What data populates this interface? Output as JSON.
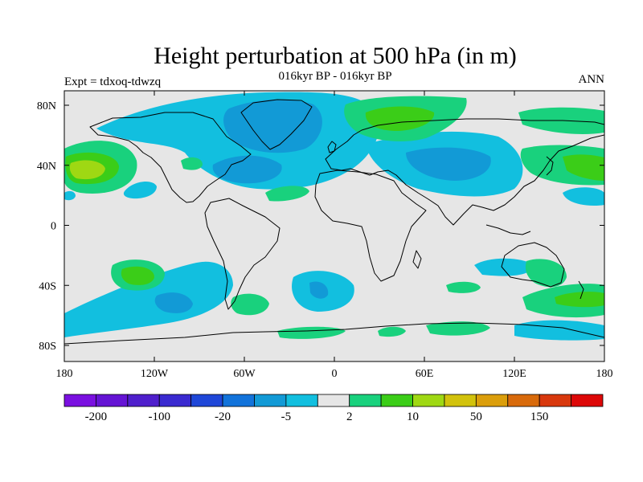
{
  "title": "Height perturbation at 500 hPa (in m)",
  "subtitle": "016kyr BP - 016kyr BP",
  "left_label": "Expt = tdxoq-tdwzq",
  "right_label": "ANN",
  "map": {
    "background_color": "#e6e6e6",
    "coast_color": "#000000",
    "y_ticks": [
      {
        "label": "80N"
      },
      {
        "label": "40N"
      },
      {
        "label": "0"
      },
      {
        "label": "40S"
      },
      {
        "label": "80S"
      }
    ],
    "x_ticks": [
      {
        "label": "180"
      },
      {
        "label": "120W"
      },
      {
        "label": "60W"
      },
      {
        "label": "0"
      },
      {
        "label": "60E"
      },
      {
        "label": "120E"
      },
      {
        "label": "180"
      }
    ]
  },
  "colorbar": {
    "colors": [
      "#7a10e0",
      "#6514d4",
      "#4f1fcc",
      "#3a2ad0",
      "#1f47d8",
      "#1273da",
      "#129ad6",
      "#12bfdf",
      "#e6e6e6",
      "#19d17d",
      "#3bcd18",
      "#9fd813",
      "#d2c20c",
      "#db9e0b",
      "#d86a0b",
      "#d8380d",
      "#dd0808"
    ],
    "labels": [
      {
        "text": "-200",
        "boundary": 1
      },
      {
        "text": "-100",
        "boundary": 3
      },
      {
        "text": "-20",
        "boundary": 5
      },
      {
        "text": "-5",
        "boundary": 7
      },
      {
        "text": "2",
        "boundary": 9
      },
      {
        "text": "10",
        "boundary": 11
      },
      {
        "text": "50",
        "boundary": 13
      },
      {
        "text": "150",
        "boundary": 15
      }
    ]
  }
}
